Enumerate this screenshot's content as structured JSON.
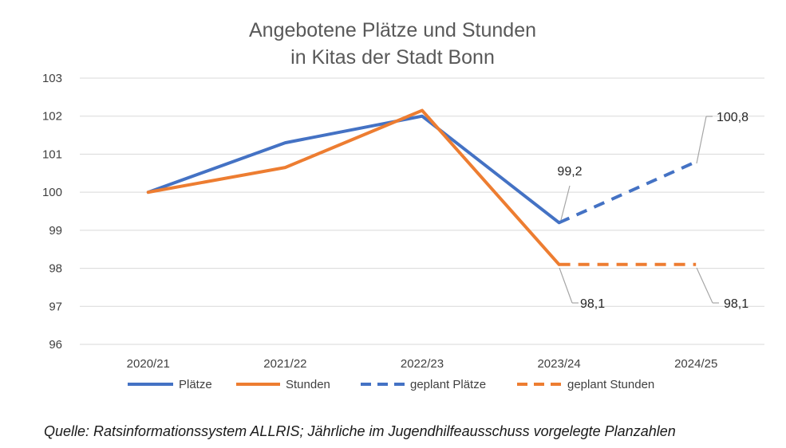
{
  "chart_data": {
    "type": "line",
    "title": [
      "Angebotene Plätze und Stunden",
      "in Kitas der Stadt Bonn"
    ],
    "categories": [
      "2020/21",
      "2021/22",
      "2022/23",
      "2023/24",
      "2024/25"
    ],
    "ylim": [
      96,
      103
    ],
    "yticks": [
      "96",
      "97",
      "98",
      "99",
      "100",
      "101",
      "102",
      "103"
    ],
    "grid": true,
    "legend_position": "bottom",
    "series": [
      {
        "name": "Plätze",
        "values": [
          100,
          101.3,
          102,
          99.2,
          null
        ],
        "color": "#4472c4",
        "dashed": false
      },
      {
        "name": "Stunden",
        "values": [
          100,
          100.65,
          102.15,
          98.1,
          null
        ],
        "color": "#ed7d31",
        "dashed": false
      },
      {
        "name": "geplant Plätze",
        "values": [
          null,
          null,
          null,
          99.2,
          100.8
        ],
        "color": "#4472c4",
        "dashed": true
      },
      {
        "name": "geplant Stunden",
        "values": [
          null,
          null,
          null,
          98.1,
          98.1
        ],
        "color": "#ed7d31",
        "dashed": true
      }
    ],
    "annotations": [
      {
        "text": "99,2",
        "series": 0,
        "point": 3
      },
      {
        "text": "100,8",
        "series": 2,
        "point": 4
      },
      {
        "text": "98,1",
        "series": 1,
        "point": 3
      },
      {
        "text": "98,1",
        "series": 3,
        "point": 4
      }
    ]
  },
  "source": "Quelle: Ratsinformationssystem ALLRIS; Jährliche im Jugendhilfeausschuss vorgelegte Planzahlen"
}
